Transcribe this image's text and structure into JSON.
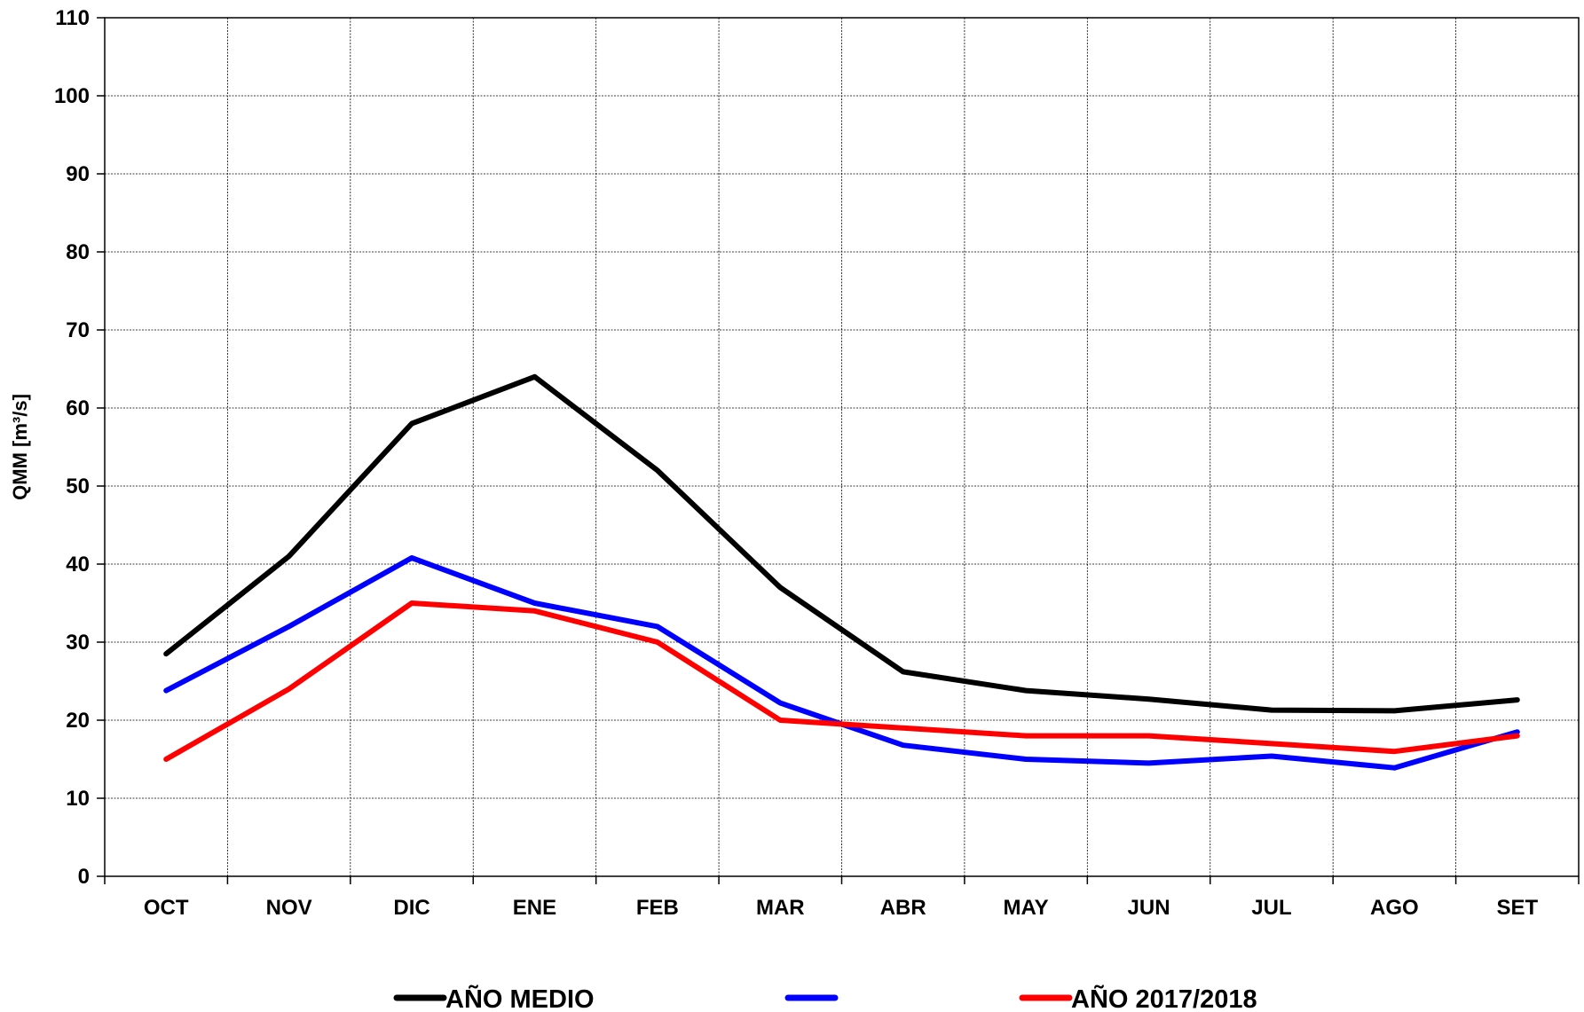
{
  "chart_data": {
    "type": "line",
    "categories": [
      "OCT",
      "NOV",
      "DIC",
      "ENE",
      "FEB",
      "MAR",
      "ABR",
      "MAY",
      "JUN",
      "JUL",
      "AGO",
      "SET"
    ],
    "ylabel": "QMM [m³/s]",
    "ylim": [
      0,
      110
    ],
    "yticks": [
      0,
      10,
      20,
      30,
      40,
      50,
      60,
      70,
      80,
      90,
      100,
      110
    ],
    "grid": true,
    "legend_position": "bottom",
    "series": [
      {
        "name": "AÑO MEDIO",
        "color": "#000000",
        "values": [
          28.5,
          41.0,
          58.0,
          64.0,
          52.0,
          37.0,
          26.2,
          23.8,
          22.7,
          21.3,
          21.2,
          22.6
        ]
      },
      {
        "name": "",
        "color": "#0000ff",
        "values": [
          23.8,
          32.0,
          40.8,
          35.0,
          32.0,
          22.2,
          16.8,
          15.0,
          14.5,
          15.4,
          13.9,
          18.5
        ]
      },
      {
        "name": "AÑO 2017/2018",
        "color": "#ff0000",
        "values": [
          15.0,
          24.0,
          35.0,
          34.0,
          30.0,
          20.0,
          19.0,
          18.0,
          18.0,
          17.0,
          16.0,
          18.0
        ]
      }
    ]
  }
}
